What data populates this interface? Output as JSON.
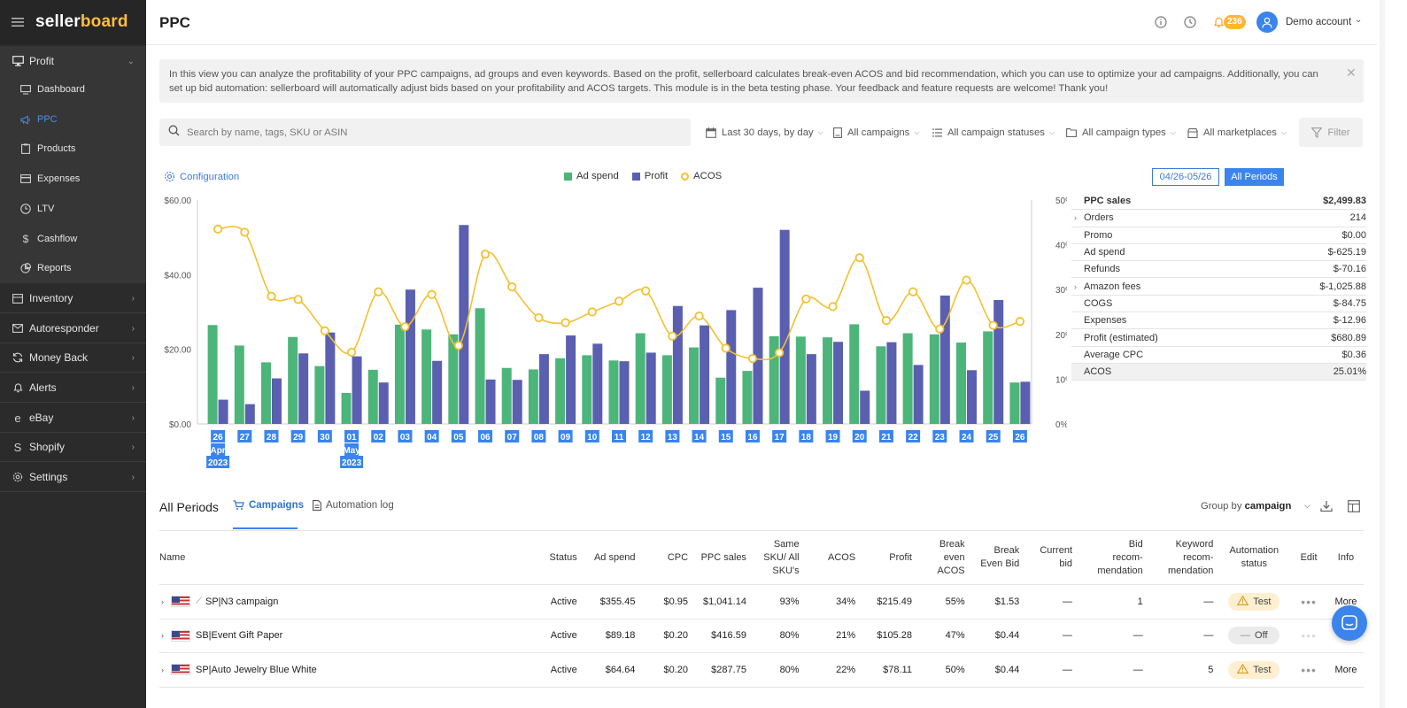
{
  "app": {
    "brand_a": "seller",
    "brand_b": "board"
  },
  "sidebar": {
    "profit": "Profit",
    "profit_items": [
      {
        "label": "Dashboard",
        "icon": "monitor-icon"
      },
      {
        "label": "PPC",
        "icon": "megaphone-icon"
      },
      {
        "label": "Products",
        "icon": "clipboard-icon"
      },
      {
        "label": "Expenses",
        "icon": "card-icon"
      },
      {
        "label": "LTV",
        "icon": "clock-icon"
      },
      {
        "label": "Cashflow",
        "icon": "dollar-icon"
      },
      {
        "label": "Reports",
        "icon": "pie-icon"
      }
    ],
    "sections": [
      {
        "label": "Inventory",
        "icon": "box-icon"
      },
      {
        "label": "Autoresponder",
        "icon": "mail-icon"
      },
      {
        "label": "Money Back",
        "icon": "refresh-icon"
      },
      {
        "label": "Alerts",
        "icon": "bell-icon"
      },
      {
        "label": "eBay",
        "icon": "ebay-icon"
      },
      {
        "label": "Shopify",
        "icon": "shopify-icon"
      },
      {
        "label": "Settings",
        "icon": "gear-icon"
      }
    ]
  },
  "header": {
    "title": "PPC",
    "notifications": "236",
    "account": "Demo account"
  },
  "banner": {
    "text": "In this view you can analyze the profitability of your PPC campaigns, ad groups and even keywords. Based on the profit, sellerboard calculates break-even ACOS and bid recommendation, which you can use to optimize your ad campaigns. Additionally, you can set up bid automation: sellerboard will automatically adjust bids based on your profitability and ACOS targets. This module is in the beta testing phase. Your feedback and feature requests are welcome! Thank you!"
  },
  "filters": {
    "search_placeholder": "Search by name, tags, SKU or ASIN",
    "date": "Last 30 days, by day",
    "campaigns": "All campaigns",
    "statuses": "All campaign statuses",
    "types": "All campaign types",
    "marketplaces": "All marketplaces",
    "filter_btn": "Filter"
  },
  "chart_controls": {
    "configuration": "Configuration",
    "period": "04/26-05/26",
    "all_periods": "All Periods"
  },
  "colors": {
    "ad_spend": "#4cb57a",
    "profit": "#5b5fb0",
    "acos": "#f2c12e",
    "accent": "#3a84ec"
  },
  "chart_data": {
    "type": "bar",
    "categories": [
      "26",
      "27",
      "28",
      "29",
      "30",
      "01",
      "02",
      "03",
      "04",
      "05",
      "06",
      "07",
      "08",
      "09",
      "10",
      "11",
      "12",
      "13",
      "14",
      "15",
      "16",
      "17",
      "18",
      "19",
      "20",
      "21",
      "22",
      "23",
      "24",
      "25",
      "26"
    ],
    "month_labels": [
      {
        "index": 0,
        "lines": [
          "Apr",
          "2023"
        ]
      },
      {
        "index": 5,
        "lines": [
          "May",
          "2023"
        ]
      }
    ],
    "series": [
      {
        "name": "Ad spend",
        "kind": "bar",
        "axis": "left",
        "values": [
          26.5,
          21,
          16.5,
          23.3,
          15.5,
          8.3,
          14.5,
          26.6,
          25.3,
          24,
          31,
          15,
          14.6,
          17.6,
          18.4,
          17,
          24.3,
          18.4,
          20.5,
          12.4,
          14.2,
          23.5,
          23.4,
          23.2,
          26.7,
          20.8,
          24.3,
          24,
          21.8,
          24.8,
          11.1
        ]
      },
      {
        "name": "Profit",
        "kind": "bar",
        "axis": "left",
        "values": [
          6.5,
          5.3,
          12.2,
          18.9,
          24.5,
          18.1,
          11.1,
          36,
          16.9,
          53.3,
          11.9,
          11.8,
          18.7,
          23.7,
          21.5,
          16.8,
          19.1,
          31.6,
          26.4,
          30.5,
          36.5,
          52,
          18.7,
          22,
          8.9,
          21.9,
          15.8,
          34.4,
          14.4,
          33.2,
          11.3
        ]
      },
      {
        "name": "ACOS",
        "kind": "line",
        "axis": "right",
        "values": [
          43.5,
          42.8,
          28.5,
          27.8,
          20.8,
          16,
          29.5,
          21.7,
          28.9,
          17.5,
          37.9,
          30.6,
          23.7,
          22.6,
          25,
          27.4,
          29.7,
          19.6,
          24.1,
          16.9,
          14.6,
          15.9,
          27.9,
          26.2,
          37.1,
          23.1,
          29.5,
          21.2,
          32.1,
          22,
          22.9
        ]
      }
    ],
    "y_left": {
      "ticks": [
        "$60.00",
        "$40.00",
        "$20.00",
        "$0.00"
      ],
      "ylim": [
        0,
        60
      ]
    },
    "y_right": {
      "ticks": [
        "50%",
        "40%",
        "30%",
        "20%",
        "10%",
        "0%"
      ],
      "ylim": [
        0,
        50
      ]
    },
    "legend": "top-center",
    "grid": false
  },
  "summary": [
    {
      "label": "PPC sales",
      "value": "$2,499.83",
      "bold": true
    },
    {
      "label": "Orders",
      "value": "214",
      "expand": true
    },
    {
      "label": "Promo",
      "value": "$0.00"
    },
    {
      "label": "Ad spend",
      "value": "$-625.19"
    },
    {
      "label": "Refunds",
      "value": "$-70.16"
    },
    {
      "label": "Amazon fees",
      "value": "$-1,025.88",
      "expand": true
    },
    {
      "label": "COGS",
      "value": "$-84.75"
    },
    {
      "label": "Expenses",
      "value": "$-12.96"
    },
    {
      "label": "Profit (estimated)",
      "value": "$680.89"
    },
    {
      "label": "Average CPC",
      "value": "$0.36"
    },
    {
      "label": "ACOS",
      "value": "25.01%",
      "shade": true
    }
  ],
  "bottom": {
    "title": "All Periods",
    "tab_campaigns": "Campaigns",
    "tab_log": "Automation log",
    "group_by_label": "Group by",
    "group_by_value": "campaign"
  },
  "table": {
    "headers": {
      "name": "Name",
      "status": "Status",
      "ad_spend": "Ad spend",
      "cpc": "CPC",
      "ppc_sales": "PPC sales",
      "same_sku_1": "Same",
      "same_sku_2": "SKU/ All",
      "same_sku_3": "SKU's",
      "acos": "ACOS",
      "profit": "Profit",
      "be_acos_1": "Break",
      "be_acos_2": "even",
      "be_acos_3": "ACOS",
      "be_bid_1": "Break",
      "be_bid_2": "Even Bid",
      "cur_bid_1": "Current",
      "cur_bid_2": "bid",
      "bid_rec_1": "Bid",
      "bid_rec_2": "recom-",
      "bid_rec_3": "mendation",
      "kw_rec_1": "Keyword",
      "kw_rec_2": "recom-",
      "kw_rec_3": "mendation",
      "auto_1": "Automation",
      "auto_2": "status",
      "edit": "Edit",
      "info": "Info"
    },
    "rows": [
      {
        "name": "SP|N3 campaign",
        "trend": true,
        "status": "Active",
        "ad_spend": "$355.45",
        "cpc": "$0.95",
        "ppc_sales": "$1,041.14",
        "same_sku": "93%",
        "acos": "34%",
        "profit": "$215.49",
        "be_acos": "55%",
        "be_bid": "$1.53",
        "cur_bid": "—",
        "bid_rec": "1",
        "kw_rec": "—",
        "automation": "Test",
        "info": "More"
      },
      {
        "name": "SB|Event Gift Paper",
        "trend": false,
        "status": "Active",
        "ad_spend": "$89.18",
        "cpc": "$0.20",
        "ppc_sales": "$416.59",
        "same_sku": "80%",
        "acos": "21%",
        "profit": "$105.28",
        "be_acos": "47%",
        "be_bid": "$0.44",
        "cur_bid": "—",
        "bid_rec": "—",
        "kw_rec": "—",
        "automation": "Off",
        "info": ""
      },
      {
        "name": "SP|Auto Jewelry Blue White",
        "trend": false,
        "status": "Active",
        "ad_spend": "$64.64",
        "cpc": "$0.20",
        "ppc_sales": "$287.75",
        "same_sku": "80%",
        "acos": "22%",
        "profit": "$78.11",
        "be_acos": "50%",
        "be_bid": "$0.44",
        "cur_bid": "—",
        "bid_rec": "—",
        "kw_rec": "5",
        "automation": "Test",
        "info": "More"
      }
    ]
  }
}
